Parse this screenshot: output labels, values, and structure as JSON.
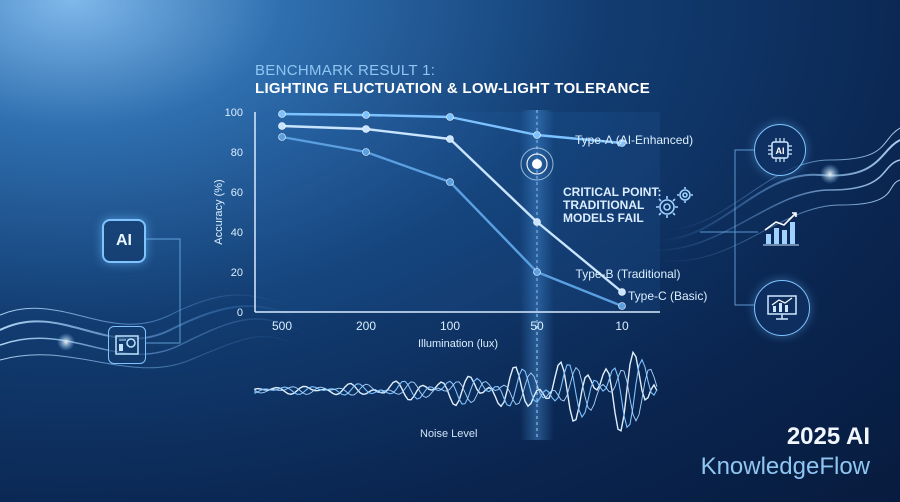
{
  "header": {
    "line1": "BENCHMARK RESULT 1:",
    "line2": "LIGHTING FLUCTUATION & LOW-LIGHT TOLERANCE"
  },
  "annotation": {
    "line1": "CRITICAL POINT:",
    "line2": "TRADITIONAL",
    "line3": "MODELS FAIL"
  },
  "noise_label": "Noise Level",
  "brand": {
    "year": "2025 AI",
    "name": "KnowledgeFlow"
  },
  "icons": {
    "left_chip": "AI",
    "right_chip": "AI"
  },
  "colors": {
    "series_a": "#7cc2ff",
    "series_b": "#c9e4ff",
    "series_c": "#5a9fe0",
    "accent": "#8fc6f2"
  },
  "chart_data": {
    "type": "line",
    "categories": [
      "500",
      "200",
      "100",
      "50",
      "10"
    ],
    "xlabel": "Illumination (lux)",
    "ylabel": "Accuracy (%)",
    "ylim": [
      0,
      100
    ],
    "yticks": [
      0,
      20,
      40,
      60,
      80,
      100
    ],
    "series": [
      {
        "name": "Type-A (AI-Enhanced)",
        "values": [
          99,
          98.5,
          97.5,
          88.5,
          84.5
        ]
      },
      {
        "name": "Type-B (Traditional)",
        "values": [
          93,
          91.5,
          86.5,
          45,
          10
        ]
      },
      {
        "name": "Type-C (Basic)",
        "values": [
          87.5,
          80,
          65,
          20,
          3
        ]
      }
    ],
    "critical_x": "50",
    "grid": false
  }
}
